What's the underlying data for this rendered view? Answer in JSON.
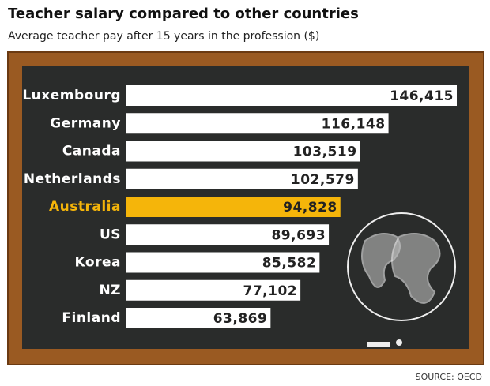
{
  "chart_data": {
    "type": "bar",
    "orientation": "horizontal",
    "title": "Teacher salary compared to other countries",
    "subtitle": "Average teacher pay after 15 years in the profession ($)",
    "source": "SOURCE: OECD",
    "categories": [
      "Luxembourg",
      "Germany",
      "Canada",
      "Netherlands",
      "Australia",
      "US",
      "Korea",
      "NZ",
      "Finland"
    ],
    "values": [
      146415,
      116148,
      103519,
      102579,
      94828,
      89693,
      85582,
      77102,
      63869
    ],
    "value_labels": [
      "146,415",
      "116,148",
      "103,519",
      "102,579",
      "94,828",
      "89,693",
      "85,582",
      "77,102",
      "63,869"
    ],
    "colors": [
      "#ffffff",
      "#ffffff",
      "#ffffff",
      "#ffffff",
      "#f5b50a",
      "#ffffff",
      "#ffffff",
      "#ffffff",
      "#ffffff"
    ]
  }
}
